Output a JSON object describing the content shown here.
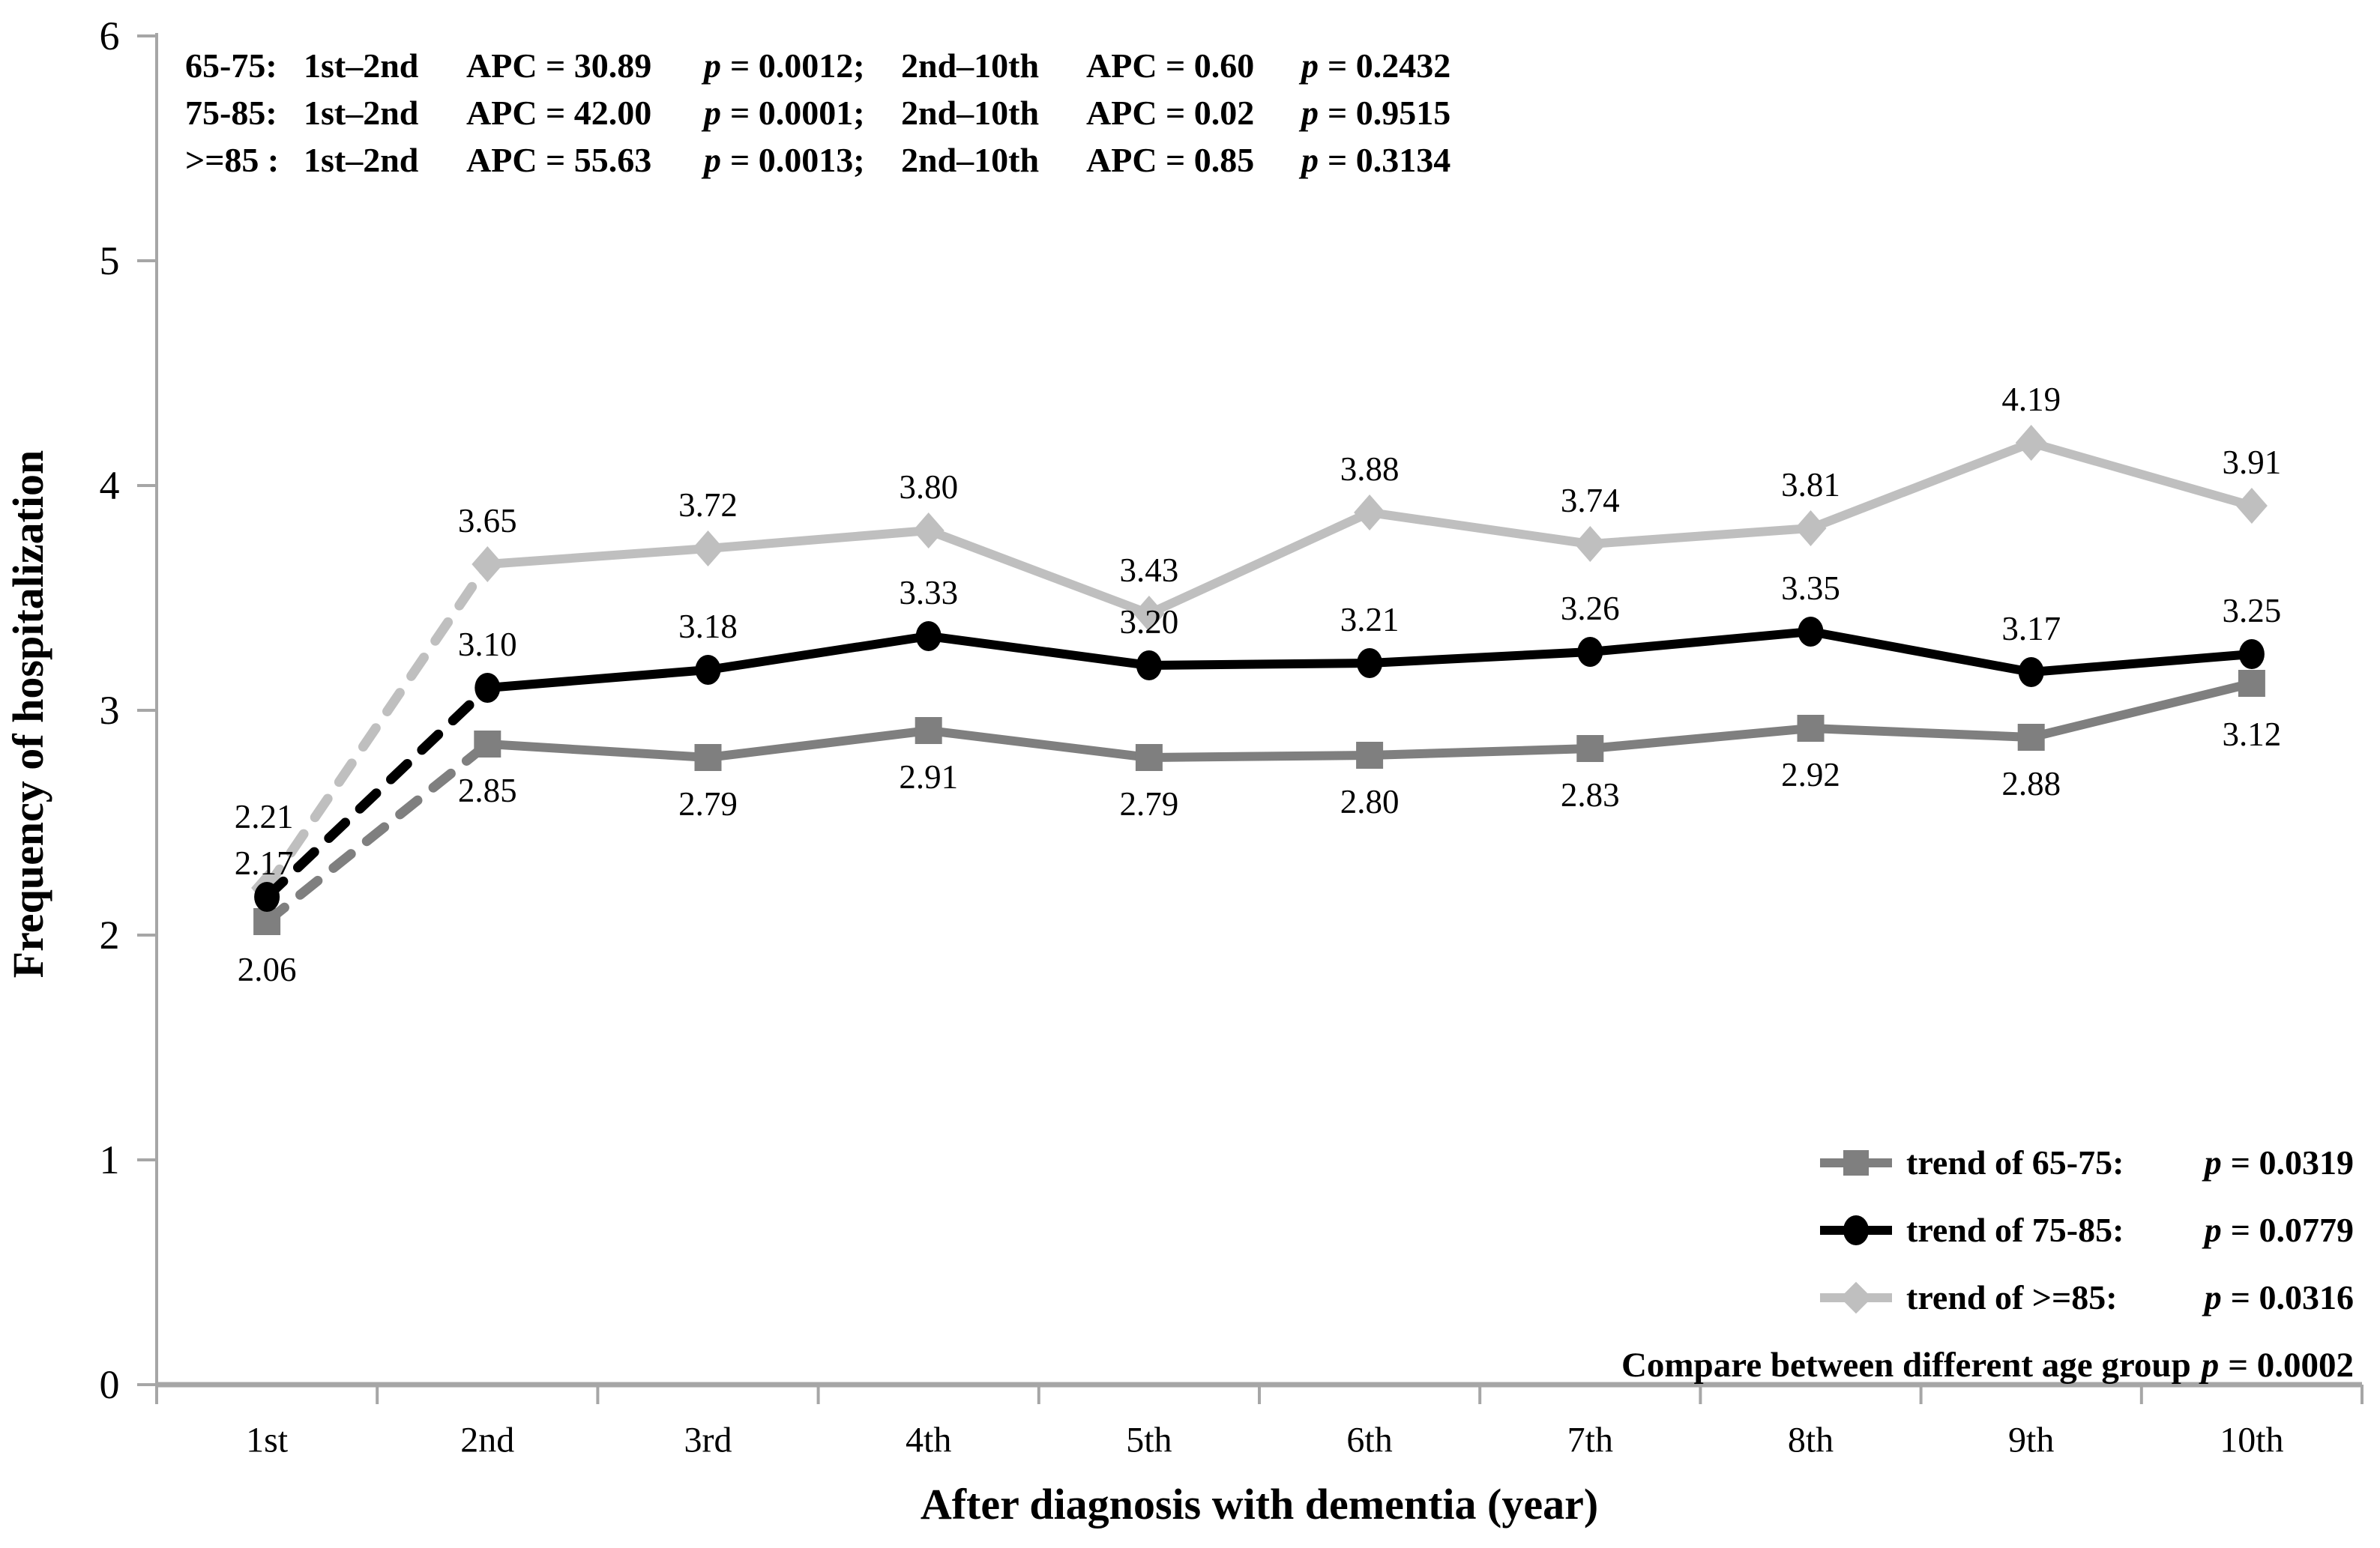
{
  "annotations": {
    "p_symbol": "p",
    "lines": [
      {
        "group": "65-75:",
        "range1": "1st–2nd",
        "apc1": "APC = 30.89",
        "p1": "= 0.0012;",
        "range2": "2nd–10th",
        "apc2": "APC = 0.60",
        "p2": "= 0.2432"
      },
      {
        "group": "75-85:",
        "range1": "1st–2nd",
        "apc1": "APC = 42.00",
        "p1": "= 0.0001;",
        "range2": "2nd–10th",
        "apc2": "APC = 0.02",
        "p2": "= 0.9515"
      },
      {
        "group": ">=85 :",
        "range1": "1st–2nd",
        "apc1": "APC = 55.63",
        "p1": "= 0.0013;",
        "range2": "2nd–10th",
        "apc2": "APC = 0.85",
        "p2": "= 0.3134"
      }
    ]
  },
  "legend": {
    "items": [
      {
        "label": "trend of 65-75:",
        "p_value": "= 0.0319",
        "marker": "square",
        "color": "#7f7f7f"
      },
      {
        "label": "trend of 75-85:",
        "p_value": "= 0.0779",
        "marker": "circle",
        "color": "#000000"
      },
      {
        "label": "trend of >=85:",
        "p_value": "= 0.0316",
        "marker": "diamond",
        "color": "#bfbfbf"
      }
    ],
    "compare_note": {
      "text": "Compare between different age group",
      "p_value": "= 0.0002"
    }
  },
  "chart_data": {
    "type": "line",
    "title": "",
    "xlabel": "After diagnosis with dementia (year)",
    "ylabel": "Frequency of hospitalization",
    "categories": [
      "1st",
      "2nd",
      "3rd",
      "4th",
      "5th",
      "6th",
      "7th",
      "8th",
      "9th",
      "10th"
    ],
    "ylim": [
      0,
      6
    ],
    "yticks": [
      0,
      1,
      2,
      3,
      4,
      5,
      6
    ],
    "grid": false,
    "legend_position": "lower right inside",
    "axis_color": "#a6a6a6",
    "text_color": "#000000",
    "first_segment_dashed": true,
    "series": [
      {
        "name": "trend of 65-75",
        "marker": "square",
        "color": "#7f7f7f",
        "label_position": "below",
        "values": [
          2.06,
          2.85,
          2.79,
          2.91,
          2.79,
          2.8,
          2.83,
          2.92,
          2.88,
          3.12
        ]
      },
      {
        "name": "trend of 75-85",
        "marker": "circle",
        "color": "#000000",
        "label_position": "above",
        "values": [
          2.17,
          3.1,
          3.18,
          3.33,
          3.2,
          3.21,
          3.26,
          3.35,
          3.17,
          3.25
        ]
      },
      {
        "name": "trend of >=85",
        "marker": "diamond",
        "color": "#bfbfbf",
        "label_position": "above",
        "values": [
          2.21,
          3.65,
          3.72,
          3.8,
          3.43,
          3.88,
          3.74,
          3.81,
          4.19,
          3.91
        ]
      }
    ]
  }
}
